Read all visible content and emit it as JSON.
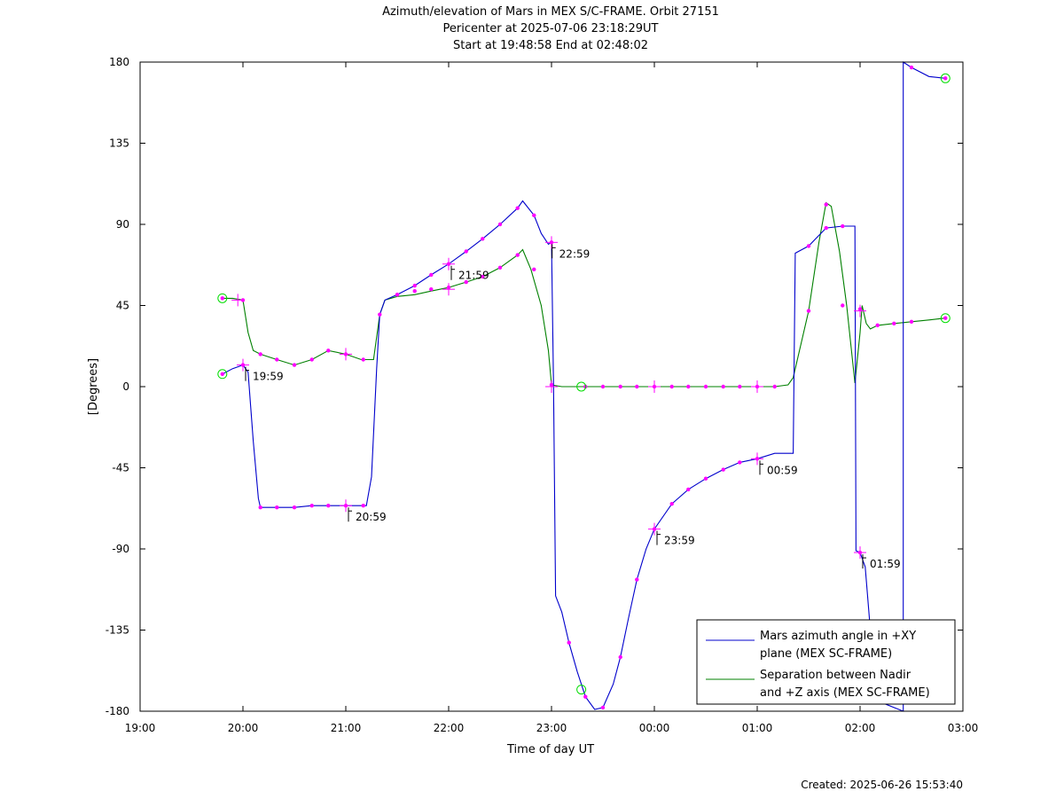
{
  "chart_data": {
    "type": "line",
    "title_lines": [
      "Azimuth/elevation of Mars in MEX S/C-FRAME.  Orbit 27151",
      "Pericenter at 2025-07-06 23:18:29UT",
      "Start at 19:48:58 End at 02:48:02"
    ],
    "xlabel": "Time of day UT",
    "ylabel": "[Degrees]",
    "footer": "Created: 2025-06-26 15:53:40",
    "x_unit": "hours from 19:00",
    "xlim": [
      0,
      8
    ],
    "ylim": [
      -180,
      180
    ],
    "x_ticks": [
      {
        "v": 0,
        "label": "19:00"
      },
      {
        "v": 1,
        "label": "20:00"
      },
      {
        "v": 2,
        "label": "21:00"
      },
      {
        "v": 3,
        "label": "22:00"
      },
      {
        "v": 4,
        "label": "23:00"
      },
      {
        "v": 5,
        "label": "00:00"
      },
      {
        "v": 6,
        "label": "01:00"
      },
      {
        "v": 7,
        "label": "02:00"
      },
      {
        "v": 8,
        "label": "03:00"
      }
    ],
    "y_ticks": [
      {
        "v": 180,
        "label": "180"
      },
      {
        "v": 135,
        "label": "135"
      },
      {
        "v": 90,
        "label": "90"
      },
      {
        "v": 45,
        "label": "45"
      },
      {
        "v": 0,
        "label": "0"
      },
      {
        "v": -45,
        "label": "-45"
      },
      {
        "v": -90,
        "label": "-90"
      },
      {
        "v": -135,
        "label": "-135"
      },
      {
        "v": -180,
        "label": "-180"
      }
    ],
    "grid": false,
    "legend_position": "bottom-right",
    "colors": {
      "series1": "#0000cc",
      "series2": "#008000",
      "marker": "#ff00ff",
      "endpoint": "#00dd00"
    },
    "series": [
      {
        "name": "Mars azimuth angle in +XY plane (MEX SC-FRAME)",
        "legend_lines": [
          "Mars azimuth angle in +XY",
          "plane (MEX SC-FRAME)"
        ],
        "color": "#0000cc",
        "points": [
          [
            0.8,
            7
          ],
          [
            0.9,
            10
          ],
          [
            1.0,
            12
          ],
          [
            1.05,
            8
          ],
          [
            1.1,
            -30
          ],
          [
            1.15,
            -62
          ],
          [
            1.17,
            -67
          ],
          [
            1.33,
            -67
          ],
          [
            1.5,
            -67
          ],
          [
            1.67,
            -66
          ],
          [
            1.83,
            -66
          ],
          [
            2.0,
            -66
          ],
          [
            2.2,
            -66
          ],
          [
            2.25,
            -50
          ],
          [
            2.3,
            10
          ],
          [
            2.33,
            40
          ],
          [
            2.38,
            48
          ],
          [
            2.5,
            51
          ],
          [
            2.67,
            56
          ],
          [
            2.83,
            62
          ],
          [
            3.0,
            68
          ],
          [
            3.17,
            75
          ],
          [
            3.33,
            82
          ],
          [
            3.5,
            90
          ],
          [
            3.67,
            99
          ],
          [
            3.72,
            103
          ],
          [
            3.83,
            95
          ],
          [
            3.9,
            85
          ],
          [
            3.97,
            79
          ],
          [
            4.0,
            80
          ],
          [
            4.02,
            0
          ],
          [
            4.04,
            -116
          ],
          [
            4.1,
            -125
          ],
          [
            4.17,
            -142
          ],
          [
            4.25,
            -158
          ],
          [
            4.33,
            -172
          ],
          [
            4.42,
            -179
          ],
          [
            4.5,
            -178
          ],
          [
            4.6,
            -165
          ],
          [
            4.67,
            -150
          ],
          [
            4.75,
            -128
          ],
          [
            4.83,
            -107
          ],
          [
            4.92,
            -90
          ],
          [
            5.0,
            -79
          ],
          [
            5.17,
            -65
          ],
          [
            5.33,
            -57
          ],
          [
            5.5,
            -51
          ],
          [
            5.67,
            -46
          ],
          [
            5.83,
            -42
          ],
          [
            6.0,
            -40
          ],
          [
            6.17,
            -37
          ],
          [
            6.35,
            -37
          ],
          [
            6.37,
            74
          ],
          [
            6.5,
            78
          ],
          [
            6.67,
            88
          ],
          [
            6.83,
            89
          ],
          [
            6.95,
            89
          ],
          [
            6.96,
            -91
          ],
          [
            7.0,
            -92
          ],
          [
            7.05,
            -100
          ],
          [
            7.1,
            -135
          ],
          [
            7.2,
            -175
          ],
          [
            7.42,
            -180
          ],
          [
            7.42,
            180
          ],
          [
            7.5,
            177
          ],
          [
            7.67,
            172
          ],
          [
            7.83,
            171
          ]
        ],
        "time_labels": [
          {
            "x": 1.0,
            "y": 12,
            "label": "19:59"
          },
          {
            "x": 2.0,
            "y": -66,
            "label": "20:59"
          },
          {
            "x": 3.0,
            "y": 68,
            "label": "21:59"
          },
          {
            "x": 3.98,
            "y": 80,
            "label": "22:59"
          },
          {
            "x": 5.0,
            "y": -79,
            "label": "23:59"
          },
          {
            "x": 6.0,
            "y": -40,
            "label": "00:59"
          },
          {
            "x": 7.0,
            "y": -92,
            "label": "01:59"
          }
        ]
      },
      {
        "name": "Separation between Nadir and +Z axis (MEX SC-FRAME)",
        "legend_lines": [
          "Separation between Nadir",
          "and +Z axis (MEX SC-FRAME)"
        ],
        "color": "#008000",
        "points": [
          [
            0.8,
            49
          ],
          [
            0.9,
            49
          ],
          [
            1.0,
            48
          ],
          [
            1.05,
            30
          ],
          [
            1.1,
            20
          ],
          [
            1.17,
            18
          ],
          [
            1.33,
            15
          ],
          [
            1.5,
            12
          ],
          [
            1.67,
            15
          ],
          [
            1.83,
            20
          ],
          [
            2.0,
            18
          ],
          [
            2.15,
            15
          ],
          [
            2.27,
            15
          ],
          [
            2.33,
            40
          ],
          [
            2.38,
            48
          ],
          [
            2.5,
            50
          ],
          [
            2.67,
            51
          ],
          [
            2.83,
            53
          ],
          [
            3.0,
            55
          ],
          [
            3.17,
            58
          ],
          [
            3.33,
            61
          ],
          [
            3.5,
            66
          ],
          [
            3.67,
            73
          ],
          [
            3.72,
            76
          ],
          [
            3.8,
            65
          ],
          [
            3.9,
            45
          ],
          [
            3.97,
            20
          ],
          [
            4.0,
            1
          ],
          [
            4.1,
            0
          ],
          [
            4.3,
            0
          ],
          [
            4.5,
            0
          ],
          [
            4.67,
            0
          ],
          [
            4.83,
            0
          ],
          [
            5.0,
            0
          ],
          [
            5.17,
            0
          ],
          [
            5.33,
            0
          ],
          [
            5.5,
            0
          ],
          [
            5.67,
            0
          ],
          [
            5.83,
            0
          ],
          [
            6.0,
            0
          ],
          [
            6.17,
            0
          ],
          [
            6.3,
            1
          ],
          [
            6.35,
            5
          ],
          [
            6.5,
            42
          ],
          [
            6.6,
            80
          ],
          [
            6.67,
            102
          ],
          [
            6.72,
            100
          ],
          [
            6.8,
            75
          ],
          [
            6.87,
            45
          ],
          [
            6.95,
            2
          ],
          [
            7.0,
            30
          ],
          [
            7.02,
            45
          ],
          [
            7.06,
            35
          ],
          [
            7.1,
            32
          ],
          [
            7.17,
            34
          ],
          [
            7.33,
            35
          ],
          [
            7.5,
            36
          ],
          [
            7.67,
            37
          ],
          [
            7.83,
            38
          ]
        ]
      }
    ],
    "markers": [
      [
        0.8,
        49
      ],
      [
        1.0,
        48
      ],
      [
        1.17,
        18
      ],
      [
        1.33,
        15
      ],
      [
        1.5,
        12
      ],
      [
        1.67,
        15
      ],
      [
        1.83,
        20
      ],
      [
        2.0,
        18
      ],
      [
        2.17,
        15
      ],
      [
        2.33,
        40
      ],
      [
        2.5,
        51
      ],
      [
        2.67,
        53
      ],
      [
        2.83,
        54
      ],
      [
        3.0,
        55
      ],
      [
        3.17,
        58
      ],
      [
        3.33,
        61
      ],
      [
        3.5,
        66
      ],
      [
        3.67,
        73
      ],
      [
        3.83,
        65
      ],
      [
        4.0,
        1
      ],
      [
        4.33,
        0
      ],
      [
        4.5,
        0
      ],
      [
        4.67,
        0
      ],
      [
        4.83,
        0
      ],
      [
        5.0,
        0
      ],
      [
        5.17,
        0
      ],
      [
        5.33,
        0
      ],
      [
        5.5,
        0
      ],
      [
        5.67,
        0
      ],
      [
        5.83,
        0
      ],
      [
        6.0,
        0
      ],
      [
        6.17,
        0
      ],
      [
        6.5,
        42
      ],
      [
        6.67,
        101
      ],
      [
        6.83,
        45
      ],
      [
        7.0,
        43
      ],
      [
        7.17,
        34
      ],
      [
        7.33,
        35
      ],
      [
        7.5,
        36
      ],
      [
        7.83,
        38
      ],
      [
        0.8,
        7
      ],
      [
        1.0,
        12
      ],
      [
        1.17,
        -67
      ],
      [
        1.33,
        -67
      ],
      [
        1.5,
        -67
      ],
      [
        1.67,
        -66
      ],
      [
        1.83,
        -66
      ],
      [
        2.0,
        -66
      ],
      [
        2.17,
        -66
      ],
      [
        2.5,
        51
      ],
      [
        2.67,
        56
      ],
      [
        2.83,
        62
      ],
      [
        3.0,
        68
      ],
      [
        3.17,
        75
      ],
      [
        3.33,
        82
      ],
      [
        3.5,
        90
      ],
      [
        3.67,
        99
      ],
      [
        3.83,
        95
      ],
      [
        4.0,
        80
      ],
      [
        4.17,
        -142
      ],
      [
        4.33,
        -172
      ],
      [
        4.5,
        -178
      ],
      [
        4.67,
        -150
      ],
      [
        4.83,
        -107
      ],
      [
        5.0,
        -79
      ],
      [
        5.17,
        -65
      ],
      [
        5.33,
        -57
      ],
      [
        5.5,
        -51
      ],
      [
        5.67,
        -46
      ],
      [
        5.83,
        -42
      ],
      [
        6.0,
        -40
      ],
      [
        6.5,
        78
      ],
      [
        6.67,
        88
      ],
      [
        6.83,
        89
      ],
      [
        7.0,
        -92
      ],
      [
        7.5,
        177
      ],
      [
        7.83,
        171
      ]
    ],
    "endpoints": [
      [
        0.8,
        7
      ],
      [
        0.8,
        49
      ],
      [
        4.29,
        0
      ],
      [
        4.29,
        -168
      ],
      [
        7.83,
        171
      ],
      [
        7.83,
        38
      ]
    ],
    "crosses": [
      [
        0.95,
        48
      ],
      [
        1.0,
        12
      ],
      [
        2.0,
        18
      ],
      [
        2.0,
        -66
      ],
      [
        3.0,
        68
      ],
      [
        3.0,
        54
      ],
      [
        4.0,
        80
      ],
      [
        4.0,
        0
      ],
      [
        5.0,
        0
      ],
      [
        5.0,
        -79
      ],
      [
        6.0,
        0
      ],
      [
        6.0,
        -40
      ],
      [
        7.0,
        -92
      ],
      [
        7.0,
        42
      ]
    ]
  }
}
